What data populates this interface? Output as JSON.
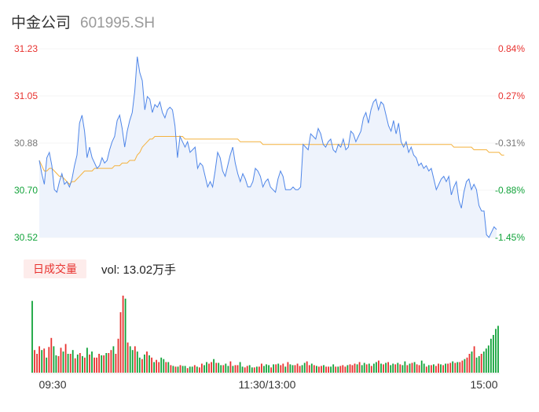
{
  "header": {
    "name": "中金公司",
    "code": "601995.SH"
  },
  "volume_panel": {
    "badge": "日成交量",
    "label": "vol: 13.02万手"
  },
  "colors": {
    "price": "#4f86e8",
    "avg": "#f4b23e",
    "up": "#e8322f",
    "down": "#12a33a",
    "neutral": "#777777",
    "fill": "#eef3fc"
  },
  "chart_data": [
    {
      "type": "line",
      "name": "intraday-price",
      "y_ticks_left": [
        "31.23",
        "31.05",
        "30.88",
        "30.70",
        "30.52"
      ],
      "y_ticks_right": [
        "0.84%",
        "0.27%",
        "-0.31%",
        "-0.88%",
        "-1.45%"
      ],
      "x_ticks": [
        "09:30",
        "11:30/13:00",
        "15:00"
      ],
      "ylim": [
        30.52,
        31.23
      ],
      "reference_price": 30.97,
      "price": [
        30.81,
        30.76,
        30.72,
        30.82,
        30.84,
        30.79,
        30.7,
        30.69,
        30.73,
        30.76,
        30.72,
        30.73,
        30.71,
        30.74,
        30.79,
        30.83,
        30.95,
        30.98,
        30.92,
        30.82,
        30.86,
        30.82,
        30.8,
        30.78,
        30.79,
        30.82,
        30.8,
        30.81,
        30.85,
        30.88,
        30.9,
        30.96,
        30.98,
        30.93,
        30.86,
        30.92,
        30.96,
        30.99,
        31.07,
        31.2,
        31.14,
        31.11,
        31.0,
        31.05,
        31.04,
        30.99,
        31.02,
        31.01,
        31.03,
        30.99,
        30.97,
        31.0,
        31.01,
        31.0,
        30.94,
        30.82,
        30.9,
        30.88,
        30.86,
        30.88,
        30.84,
        30.85,
        30.86,
        30.78,
        30.8,
        30.79,
        30.75,
        30.71,
        30.73,
        30.71,
        30.77,
        30.84,
        30.82,
        30.77,
        30.75,
        30.79,
        30.83,
        30.86,
        30.8,
        30.76,
        30.73,
        30.76,
        30.74,
        30.71,
        30.71,
        30.73,
        30.78,
        30.77,
        30.75,
        30.71,
        30.73,
        30.74,
        30.71,
        30.7,
        30.69,
        30.74,
        30.77,
        30.75,
        30.7,
        30.7,
        30.7,
        30.71,
        30.7,
        30.7,
        30.71,
        30.87,
        30.86,
        30.85,
        30.91,
        30.9,
        30.89,
        30.93,
        30.91,
        30.87,
        30.86,
        30.88,
        30.89,
        30.85,
        30.84,
        30.87,
        30.86,
        30.89,
        30.85,
        30.86,
        30.92,
        30.91,
        30.88,
        30.9,
        30.92,
        30.97,
        30.99,
        30.95,
        31.0,
        31.03,
        31.04,
        31.0,
        31.03,
        31.02,
        30.98,
        30.94,
        30.92,
        30.96,
        30.91,
        30.95,
        30.88,
        30.86,
        30.88,
        30.84,
        30.86,
        30.83,
        30.82,
        30.79,
        30.8,
        30.78,
        30.79,
        30.77,
        30.78,
        30.74,
        30.7,
        30.72,
        30.74,
        30.75,
        30.73,
        30.75,
        30.68,
        30.71,
        30.73,
        30.66,
        30.63,
        30.69,
        30.73,
        30.74,
        30.7,
        30.72,
        30.7,
        30.64,
        30.62,
        30.62,
        30.53,
        30.52,
        30.54,
        30.56,
        30.55
      ],
      "average": [
        30.81,
        30.79,
        30.77,
        30.77,
        30.78,
        30.78,
        30.77,
        30.76,
        30.75,
        30.75,
        30.74,
        30.73,
        30.72,
        30.73,
        30.73,
        30.74,
        30.75,
        30.76,
        30.77,
        30.77,
        30.77,
        30.77,
        30.78,
        30.78,
        30.78,
        30.78,
        30.78,
        30.78,
        30.78,
        30.78,
        30.79,
        30.79,
        30.79,
        30.8,
        30.8,
        30.8,
        30.81,
        30.81,
        30.81,
        30.83,
        30.84,
        30.86,
        30.87,
        30.88,
        30.89,
        30.89,
        30.9,
        30.9,
        30.9,
        30.9,
        30.9,
        30.9,
        30.9,
        30.9,
        30.9,
        30.9,
        30.9,
        30.9,
        30.89,
        30.89,
        30.89,
        30.89,
        30.89,
        30.89,
        30.89,
        30.89,
        30.89,
        30.89,
        30.89,
        30.89,
        30.89,
        30.89,
        30.89,
        30.89,
        30.89,
        30.89,
        30.89,
        30.89,
        30.89,
        30.89,
        30.88,
        30.88,
        30.88,
        30.88,
        30.88,
        30.88,
        30.88,
        30.88,
        30.88,
        30.87,
        30.87,
        30.87,
        30.87,
        30.87,
        30.87,
        30.87,
        30.87,
        30.87,
        30.87,
        30.87,
        30.87,
        30.87,
        30.87,
        30.87,
        30.87,
        30.87,
        30.87,
        30.87,
        30.87,
        30.87,
        30.87,
        30.87,
        30.87,
        30.87,
        30.87,
        30.87,
        30.87,
        30.87,
        30.87,
        30.87,
        30.87,
        30.87,
        30.87,
        30.87,
        30.87,
        30.87,
        30.87,
        30.87,
        30.87,
        30.87,
        30.87,
        30.87,
        30.87,
        30.87,
        30.87,
        30.87,
        30.87,
        30.87,
        30.87,
        30.87,
        30.87,
        30.87,
        30.87,
        30.87,
        30.87,
        30.87,
        30.87,
        30.87,
        30.87,
        30.87,
        30.87,
        30.87,
        30.87,
        30.87,
        30.87,
        30.87,
        30.87,
        30.87,
        30.87,
        30.87,
        30.87,
        30.87,
        30.87,
        30.87,
        30.87,
        30.86,
        30.86,
        30.86,
        30.86,
        30.86,
        30.86,
        30.86,
        30.86,
        30.85,
        30.85,
        30.85,
        30.85,
        30.85,
        30.85,
        30.84,
        30.84,
        30.84,
        30.84,
        30.84,
        30.83,
        30.83
      ]
    },
    {
      "type": "bar",
      "name": "intraday-volume",
      "volume": [
        95,
        30,
        25,
        35,
        30,
        32,
        20,
        34,
        46,
        35,
        23,
        22,
        33,
        28,
        38,
        25,
        25,
        30,
        19,
        24,
        26,
        22,
        20,
        33,
        24,
        28,
        20,
        20,
        25,
        23,
        23,
        26,
        26,
        30,
        35,
        25,
        45,
        80,
        102,
        98,
        40,
        35,
        30,
        35,
        28,
        20,
        18,
        24,
        28,
        23,
        20,
        14,
        17,
        14,
        20,
        18,
        14,
        14,
        10,
        9,
        8,
        8,
        10,
        9,
        9,
        6,
        8,
        8,
        10,
        8,
        7,
        12,
        10,
        14,
        12,
        14,
        18,
        13,
        13,
        10,
        10,
        12,
        9,
        15,
        9,
        10,
        10,
        14,
        8,
        7,
        9,
        10,
        7,
        7,
        8,
        8,
        12,
        9,
        11,
        10,
        7,
        11,
        11,
        12,
        10,
        12,
        8,
        14,
        11,
        10,
        10,
        12,
        9,
        10,
        13,
        15,
        10,
        12,
        10,
        9,
        8,
        9,
        10,
        8,
        8,
        8,
        11,
        8,
        8,
        9,
        10,
        8,
        10,
        11,
        10,
        12,
        11,
        14,
        10,
        13,
        11,
        12,
        9,
        12,
        14,
        16,
        12,
        11,
        13,
        14,
        10,
        12,
        11,
        13,
        11,
        10,
        15,
        10,
        12,
        13,
        14,
        11,
        10,
        16,
        12,
        8,
        10,
        10,
        11,
        9,
        12,
        11,
        10,
        12,
        12,
        13,
        15,
        13,
        14,
        14,
        16,
        18,
        20,
        25,
        28,
        35,
        20,
        22,
        25,
        28,
        32,
        36,
        45,
        50,
        58,
        62
      ],
      "up": [
        0,
        1,
        1,
        1,
        0,
        1,
        0,
        1,
        1,
        0,
        0,
        1,
        1,
        0,
        1,
        0,
        1,
        0,
        1,
        0,
        1,
        0,
        1,
        0,
        1,
        0,
        1,
        1,
        1,
        0,
        1,
        0,
        1,
        1,
        0,
        1,
        1,
        1,
        1,
        0,
        1,
        0,
        0,
        1,
        0,
        0,
        1,
        0,
        1,
        0,
        1,
        0,
        1,
        1,
        0,
        0,
        1,
        0,
        1,
        0,
        1,
        0,
        1,
        0,
        0,
        1,
        0,
        0,
        1,
        0,
        1,
        1,
        0,
        0,
        1,
        1,
        0,
        1,
        0,
        0,
        1,
        0,
        0,
        1,
        0,
        1,
        1,
        0,
        0,
        1,
        1,
        0,
        0,
        1,
        0,
        1,
        1,
        0,
        0,
        0,
        1,
        0,
        1,
        0,
        1,
        1,
        0,
        1,
        0,
        0,
        1,
        1,
        1,
        0,
        0,
        1,
        1,
        0,
        1,
        0,
        1,
        1,
        0,
        1,
        1,
        0,
        0,
        1,
        0,
        1,
        1,
        1,
        0,
        1,
        1,
        1,
        0,
        1,
        0,
        0,
        1,
        0,
        1,
        0,
        0,
        1,
        0,
        1,
        0,
        1,
        0,
        0,
        1,
        0,
        1,
        0,
        0,
        1,
        0,
        1,
        0,
        1,
        1,
        0,
        0,
        1,
        0,
        1,
        0,
        1,
        1,
        0,
        1,
        0,
        1,
        1,
        0,
        1,
        0,
        1,
        1,
        0,
        1,
        1,
        0,
        1,
        0,
        0,
        1,
        0
      ]
    }
  ]
}
